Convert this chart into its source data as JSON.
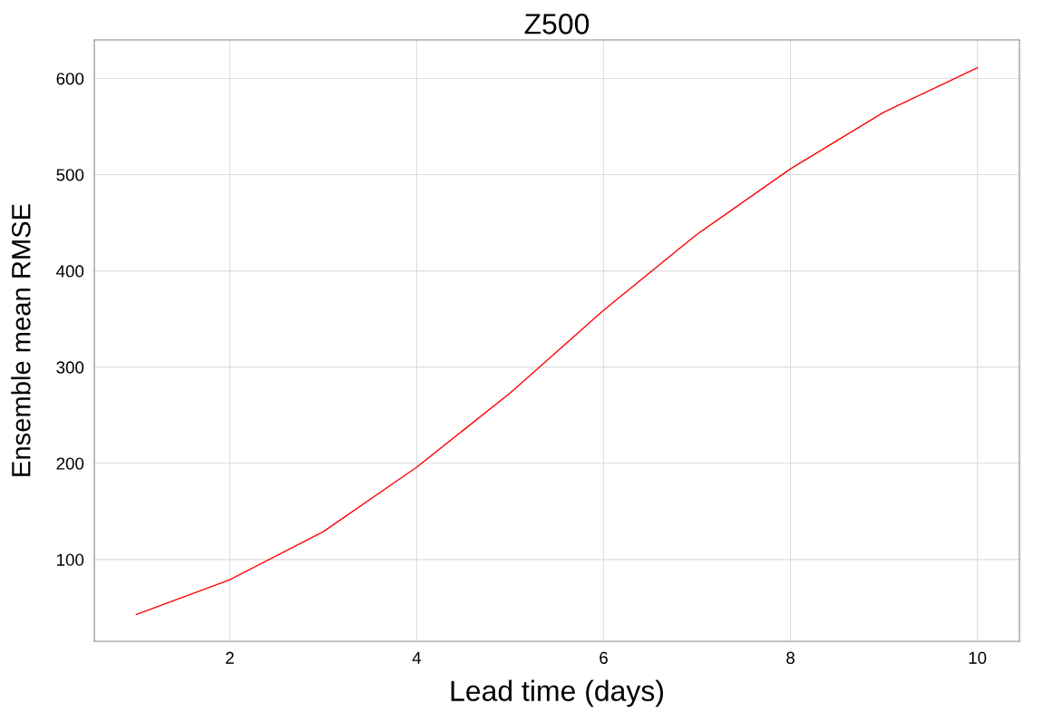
{
  "chart_data": {
    "type": "line",
    "title": "Z500",
    "xlabel": "Lead time (days)",
    "ylabel": "Ensemble mean RMSE",
    "x": [
      1,
      2,
      3,
      4,
      5,
      6,
      7,
      8,
      9,
      10
    ],
    "series": [
      {
        "color": "#ff0000",
        "values": [
          43,
          79,
          129,
          196,
          273,
          359,
          438,
          506,
          565,
          611
        ]
      }
    ],
    "xlim": [
      0.55,
      10.45
    ],
    "ylim": [
      15,
      640
    ],
    "xticks": [
      2,
      4,
      6,
      8,
      10
    ],
    "yticks": [
      100,
      200,
      300,
      400,
      500,
      600
    ],
    "grid": true,
    "line_style": "solid",
    "marker": "none"
  }
}
